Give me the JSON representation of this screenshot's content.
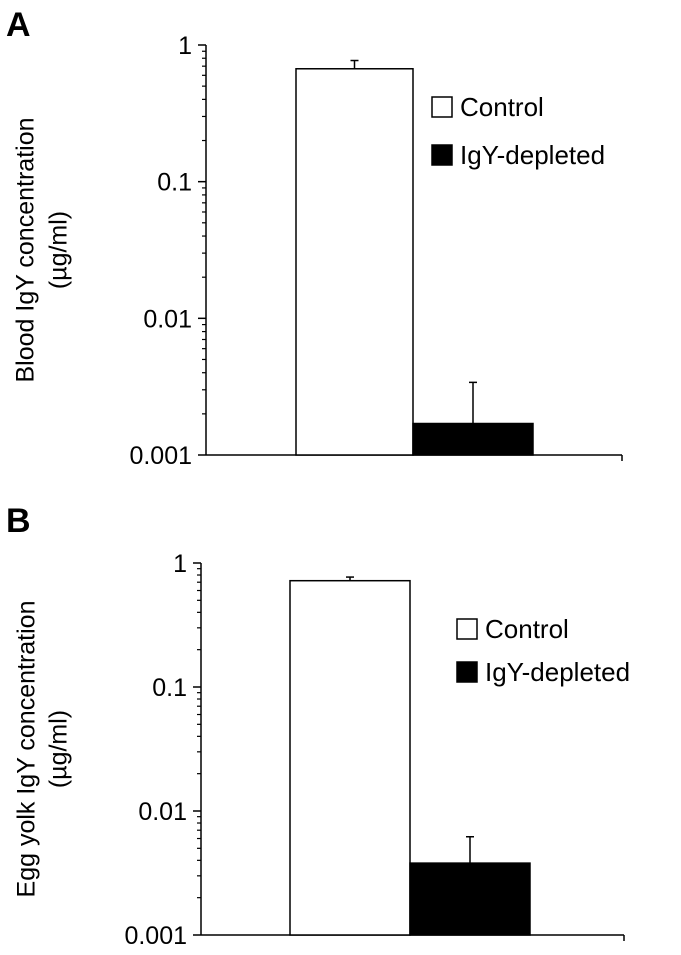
{
  "chart_data": [
    {
      "panel": "A",
      "type": "bar",
      "scale": "log",
      "ylabel_lines": [
        "Blood IgY concentration",
        "(µg/ml)"
      ],
      "ylim": [
        0.001,
        1
      ],
      "yticks": [
        {
          "value": 1,
          "label": "1"
        },
        {
          "value": 0.1,
          "label": "0.1"
        },
        {
          "value": 0.01,
          "label": "0.01"
        },
        {
          "value": 0.001,
          "label": "0.001"
        }
      ],
      "series": [
        {
          "name": "Control",
          "value": 0.67,
          "error_upper": 0.77,
          "fill": "#ffffff"
        },
        {
          "name": "IgY-depleted",
          "value": 0.0017,
          "error_upper": 0.0034,
          "fill": "#000000"
        }
      ],
      "legend_position": "top-right",
      "grid": false
    },
    {
      "panel": "B",
      "type": "bar",
      "scale": "log",
      "ylabel_lines": [
        "Egg yolk IgY concentration",
        "(µg/ml)"
      ],
      "ylim": [
        0.001,
        1
      ],
      "yticks": [
        {
          "value": 1,
          "label": "1"
        },
        {
          "value": 0.1,
          "label": "0.1"
        },
        {
          "value": 0.01,
          "label": "0.01"
        },
        {
          "value": 0.001,
          "label": "0.001"
        }
      ],
      "series": [
        {
          "name": "Control",
          "value": 0.72,
          "error_upper": 0.77,
          "fill": "#ffffff"
        },
        {
          "name": "IgY-depleted",
          "value": 0.0038,
          "error_upper": 0.0062,
          "fill": "#000000"
        }
      ],
      "legend_position": "right",
      "grid": false
    }
  ]
}
